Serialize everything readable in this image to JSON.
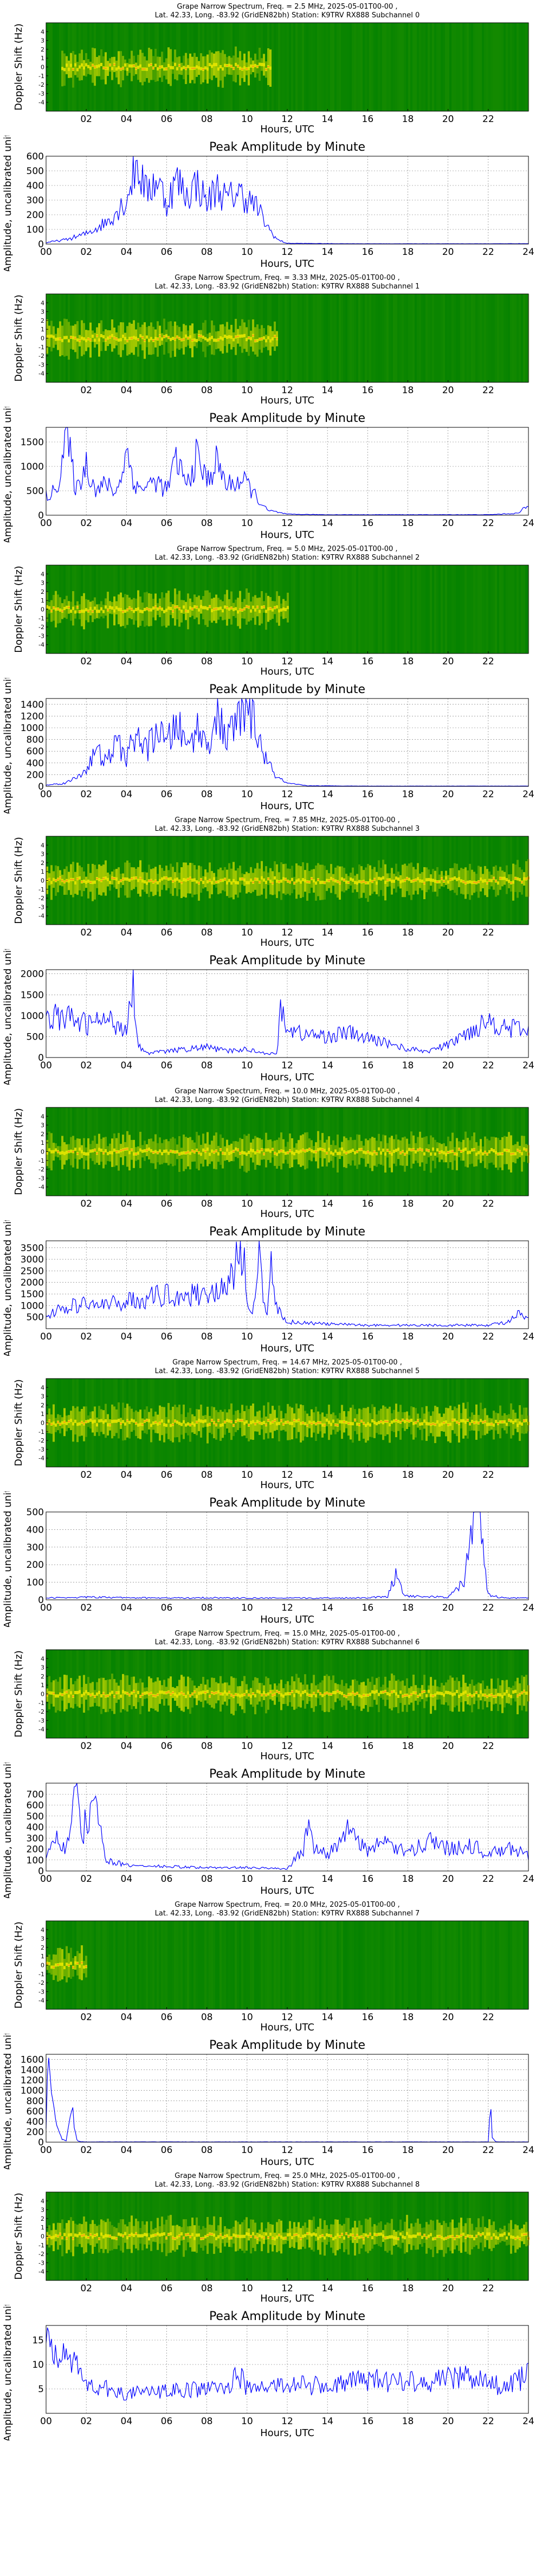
{
  "chart_data": [
    {
      "type": "heatmap",
      "title_line1": "Grape Narrow Spectrum, Freq. = 2.5 MHz, 2025-05-01T00-00 ,",
      "title_line2": "Lat.  42.33, Long. -83.92 (GridEN82bh) Station: K9TRV RX888 Subchannel 0",
      "xlabel": "Hours, UTC",
      "ylabel": "Doppler Shift (Hz)",
      "xticks": [
        "02",
        "04",
        "06",
        "08",
        "10",
        "12",
        "14",
        "16",
        "18",
        "20",
        "22"
      ],
      "yticks": [
        "4",
        "3",
        "2",
        "1",
        "0",
        "-1",
        "-2",
        "-3",
        "-4"
      ],
      "ylim": [
        -5,
        5
      ],
      "signal_hours": [
        0.7,
        11.2
      ],
      "colors": {
        "background": "#008000",
        "signal": "#e6e600",
        "peak": "#ff8c1a"
      }
    },
    {
      "type": "line",
      "title": "Peak Amplitude by Minute",
      "xlabel": "Hours, UTC",
      "ylabel": "Amplitude, uncalibrated units",
      "xlim": [
        0,
        24
      ],
      "ylim": [
        0,
        600
      ],
      "yticks": [
        "0",
        "100",
        "200",
        "300",
        "400",
        "500",
        "600"
      ],
      "xticks": [
        "00",
        "02",
        "04",
        "06",
        "08",
        "10",
        "12",
        "14",
        "16",
        "18",
        "20",
        "22",
        "24"
      ],
      "x": [
        0,
        1,
        2,
        3,
        4,
        4.5,
        5,
        5.5,
        6,
        6.5,
        7,
        7.5,
        8,
        8.5,
        9,
        9.5,
        10,
        10.5,
        11,
        11.5,
        12,
        14,
        16,
        18,
        20,
        22,
        24
      ],
      "y": [
        10,
        30,
        70,
        150,
        300,
        560,
        350,
        450,
        280,
        440,
        330,
        420,
        280,
        390,
        300,
        360,
        310,
        250,
        120,
        30,
        5,
        3,
        2,
        2,
        2,
        2,
        3
      ],
      "color": "#0000ff"
    },
    {
      "type": "heatmap",
      "title_line1": "Grape Narrow Spectrum, Freq. = 3.33 MHz, 2025-05-01T00-00 ,",
      "title_line2": "Lat.  42.33, Long. -83.92 (GridEN82bh) Station: K9TRV RX888 Subchannel 1",
      "xlabel": "Hours, UTC",
      "ylabel": "Doppler Shift (Hz)",
      "xticks": [
        "02",
        "04",
        "06",
        "08",
        "10",
        "12",
        "14",
        "16",
        "18",
        "20",
        "22"
      ],
      "yticks": [
        "4",
        "3",
        "2",
        "1",
        "0",
        "-1",
        "-2",
        "-3",
        "-4"
      ],
      "ylim": [
        -5,
        5
      ],
      "signal_hours": [
        0,
        11.5
      ],
      "colors": {
        "background": "#008000",
        "signal": "#e6e600",
        "peak": "#ff8c1a"
      }
    },
    {
      "type": "line",
      "title": "Peak Amplitude by Minute",
      "xlabel": "Hours, UTC",
      "ylabel": "Amplitude, uncalibrated units",
      "xlim": [
        0,
        24
      ],
      "ylim": [
        0,
        1800
      ],
      "yticks": [
        "0",
        "500",
        "1000",
        "1500"
      ],
      "xticks": [
        "00",
        "02",
        "04",
        "06",
        "08",
        "10",
        "12",
        "14",
        "16",
        "18",
        "20",
        "22",
        "24"
      ],
      "x": [
        0,
        0.5,
        1,
        1.5,
        2,
        2.5,
        3,
        3.5,
        4,
        4.5,
        5,
        5.5,
        6,
        6.5,
        7,
        7.5,
        8,
        8.5,
        9,
        9.5,
        10,
        10.5,
        11,
        12,
        14,
        16,
        18,
        20,
        22,
        23.5,
        24
      ],
      "y": [
        400,
        500,
        1650,
        500,
        1050,
        500,
        650,
        450,
        1300,
        550,
        600,
        700,
        500,
        1150,
        600,
        1200,
        700,
        1100,
        600,
        700,
        650,
        350,
        100,
        20,
        10,
        10,
        10,
        10,
        10,
        40,
        200
      ],
      "color": "#0000ff"
    },
    {
      "type": "heatmap",
      "title_line1": "Grape Narrow Spectrum, Freq. = 5.0 MHz, 2025-05-01T00-00 ,",
      "title_line2": "Lat.  42.33, Long. -83.92 (GridEN82bh) Station: K9TRV RX888 Subchannel 2",
      "xlabel": "Hours, UTC",
      "ylabel": "Doppler Shift (Hz)",
      "xticks": [
        "02",
        "04",
        "06",
        "08",
        "10",
        "12",
        "14",
        "16",
        "18",
        "20",
        "22"
      ],
      "yticks": [
        "4",
        "3",
        "2",
        "1",
        "0",
        "-1",
        "-2",
        "-3",
        "-4"
      ],
      "ylim": [
        -5,
        5
      ],
      "signal_hours": [
        0,
        12
      ],
      "colors": {
        "background": "#008000",
        "signal": "#e6e600",
        "peak": "#ff8c1a"
      }
    },
    {
      "type": "line",
      "title": "Peak Amplitude by Minute",
      "xlabel": "Hours, UTC",
      "ylabel": "Amplitude, uncalibrated units",
      "xlim": [
        0,
        24
      ],
      "ylim": [
        0,
        1500
      ],
      "yticks": [
        "0",
        "200",
        "400",
        "600",
        "800",
        "1000",
        "1200",
        "1400"
      ],
      "xticks": [
        "00",
        "02",
        "04",
        "06",
        "08",
        "10",
        "12",
        "14",
        "16",
        "18",
        "20",
        "22",
        "24"
      ],
      "x": [
        0,
        1,
        1.5,
        2,
        2.5,
        3,
        3.5,
        4,
        4.5,
        5,
        5.5,
        6,
        6.5,
        7,
        7.5,
        8,
        8.5,
        9,
        9.5,
        10,
        10.5,
        11,
        11.5,
        12,
        13,
        16,
        20,
        24
      ],
      "y": [
        20,
        60,
        150,
        300,
        600,
        400,
        750,
        500,
        900,
        600,
        1000,
        700,
        1100,
        650,
        1000,
        700,
        1200,
        800,
        1100,
        1450,
        900,
        400,
        150,
        50,
        10,
        5,
        5,
        5
      ],
      "color": "#0000ff"
    },
    {
      "type": "heatmap",
      "title_line1": "Grape Narrow Spectrum, Freq. = 7.85 MHz, 2025-05-01T00-00 ,",
      "title_line2": "Lat.  42.33, Long. -83.92 (GridEN82bh) Station: K9TRV RX888 Subchannel 3",
      "xlabel": "Hours, UTC",
      "ylabel": "Doppler Shift (Hz)",
      "xticks": [
        "02",
        "04",
        "06",
        "08",
        "10",
        "12",
        "14",
        "16",
        "18",
        "20",
        "22"
      ],
      "yticks": [
        "4",
        "3",
        "2",
        "1",
        "0",
        "-1",
        "-2",
        "-3",
        "-4"
      ],
      "ylim": [
        -5,
        5
      ],
      "signal_hours": [
        0,
        24
      ],
      "colors": {
        "background": "#008000",
        "signal": "#e6e600",
        "peak": "#ff8c1a"
      }
    },
    {
      "type": "line",
      "title": "Peak Amplitude by Minute",
      "xlabel": "Hours, UTC",
      "ylabel": "Amplitude, uncalibrated units",
      "xlim": [
        0,
        24
      ],
      "ylim": [
        0,
        2100
      ],
      "yticks": [
        "0",
        "500",
        "1000",
        "1500",
        "2000"
      ],
      "xticks": [
        "00",
        "02",
        "04",
        "06",
        "08",
        "10",
        "12",
        "14",
        "16",
        "18",
        "20",
        "22",
        "24"
      ],
      "x": [
        0,
        1,
        2,
        3,
        4,
        4.3,
        4.6,
        5,
        6,
        7,
        8,
        9,
        10,
        11,
        11.5,
        11.7,
        12,
        13,
        14,
        15,
        16,
        17,
        18,
        19,
        20,
        21,
        22,
        23,
        24
      ],
      "y": [
        1000,
        950,
        800,
        900,
        700,
        2000,
        300,
        100,
        150,
        200,
        250,
        150,
        200,
        100,
        80,
        1400,
        650,
        550,
        500,
        600,
        450,
        350,
        200,
        150,
        300,
        600,
        900,
        700,
        650
      ],
      "color": "#0000ff"
    },
    {
      "type": "heatmap",
      "title_line1": "Grape Narrow Spectrum, Freq. = 10.0 MHz, 2025-05-01T00-00 ,",
      "title_line2": "Lat.  42.33, Long. -83.92 (GridEN82bh) Station: K9TRV RX888 Subchannel 4",
      "xlabel": "Hours, UTC",
      "ylabel": "Doppler Shift (Hz)",
      "xticks": [
        "02",
        "04",
        "06",
        "08",
        "10",
        "12",
        "14",
        "16",
        "18",
        "20",
        "22"
      ],
      "yticks": [
        "4",
        "3",
        "2",
        "1",
        "0",
        "-1",
        "-2",
        "-3",
        "-4"
      ],
      "ylim": [
        -5,
        5
      ],
      "signal_hours": [
        0,
        24
      ],
      "colors": {
        "background": "#008000",
        "signal": "#e6e600",
        "peak": "#ff8c1a"
      }
    },
    {
      "type": "line",
      "title": "Peak Amplitude by Minute",
      "xlabel": "Hours, UTC",
      "ylabel": "Amplitude, uncalibrated units",
      "xlim": [
        0,
        24
      ],
      "ylim": [
        0,
        3800
      ],
      "yticks": [
        "500",
        "1000",
        "1500",
        "2000",
        "2500",
        "3000",
        "3500"
      ],
      "xticks": [
        "00",
        "02",
        "04",
        "06",
        "08",
        "10",
        "12",
        "14",
        "16",
        "18",
        "20",
        "22",
        "24"
      ],
      "x": [
        0,
        1,
        2,
        3,
        4,
        5,
        6,
        7,
        8,
        9,
        9.8,
        10,
        10.3,
        10.6,
        11,
        11.2,
        11.5,
        12,
        14,
        16,
        18,
        20,
        22,
        23,
        23.5,
        24
      ],
      "y": [
        600,
        900,
        1100,
        1000,
        1200,
        1300,
        1500,
        1400,
        1600,
        1700,
        3600,
        900,
        600,
        2900,
        500,
        3100,
        800,
        300,
        200,
        150,
        150,
        150,
        150,
        300,
        600,
        400
      ],
      "color": "#0000ff"
    },
    {
      "type": "heatmap",
      "title_line1": "Grape Narrow Spectrum, Freq. = 14.67 MHz, 2025-05-01T00-00 ,",
      "title_line2": "Lat.  42.33, Long. -83.92 (GridEN82bh) Station: K9TRV RX888 Subchannel 5",
      "xlabel": "Hours, UTC",
      "ylabel": "Doppler Shift (Hz)",
      "xticks": [
        "02",
        "04",
        "06",
        "08",
        "10",
        "12",
        "14",
        "16",
        "18",
        "20",
        "22"
      ],
      "yticks": [
        "4",
        "3",
        "2",
        "1",
        "0",
        "-1",
        "-2",
        "-3",
        "-4"
      ],
      "ylim": [
        -5,
        5
      ],
      "signal_hours": [
        0,
        24
      ],
      "colors": {
        "background": "#008000",
        "signal": "#e6e600",
        "peak": "#ff8c1a"
      }
    },
    {
      "type": "line",
      "title": "Peak Amplitude by Minute",
      "xlabel": "Hours, UTC",
      "ylabel": "Amplitude, uncalibrated units",
      "xlim": [
        0,
        24
      ],
      "ylim": [
        0,
        500
      ],
      "yticks": [
        "0",
        "100",
        "200",
        "300",
        "400",
        "500"
      ],
      "xticks": [
        "00",
        "02",
        "04",
        "06",
        "08",
        "10",
        "12",
        "14",
        "16",
        "18",
        "20",
        "22",
        "24"
      ],
      "x": [
        0,
        2,
        4,
        6,
        8,
        10,
        12,
        14,
        16,
        17,
        17.4,
        17.8,
        18,
        20,
        20.8,
        21,
        21.3,
        21.6,
        21.8,
        22,
        22.5,
        23,
        24
      ],
      "y": [
        10,
        15,
        12,
        10,
        12,
        10,
        10,
        10,
        12,
        20,
        150,
        40,
        20,
        15,
        100,
        300,
        400,
        470,
        200,
        30,
        15,
        10,
        10
      ],
      "color": "#0000ff"
    },
    {
      "type": "heatmap",
      "title_line1": "Grape Narrow Spectrum, Freq. = 15.0 MHz, 2025-05-01T00-00 ,",
      "title_line2": "Lat.  42.33, Long. -83.92 (GridEN82bh) Station: K9TRV RX888 Subchannel 6",
      "xlabel": "Hours, UTC",
      "ylabel": "Doppler Shift (Hz)",
      "xticks": [
        "02",
        "04",
        "06",
        "08",
        "10",
        "12",
        "14",
        "16",
        "18",
        "20",
        "22"
      ],
      "yticks": [
        "4",
        "3",
        "2",
        "1",
        "0",
        "-1",
        "-2",
        "-3",
        "-4"
      ],
      "ylim": [
        -5,
        5
      ],
      "signal_hours": [
        0,
        24
      ],
      "colors": {
        "background": "#008000",
        "signal": "#e6e600",
        "peak": "#ff8c1a"
      }
    },
    {
      "type": "line",
      "title": "Peak Amplitude by Minute",
      "xlabel": "Hours, UTC",
      "ylabel": "Amplitude, uncalibrated units",
      "xlim": [
        0,
        24
      ],
      "ylim": [
        0,
        800
      ],
      "yticks": [
        "0",
        "100",
        "200",
        "300",
        "400",
        "500",
        "600",
        "700"
      ],
      "xticks": [
        "00",
        "02",
        "04",
        "06",
        "08",
        "10",
        "12",
        "14",
        "16",
        "18",
        "20",
        "22",
        "24"
      ],
      "x": [
        0,
        0.5,
        1,
        1.5,
        1.8,
        2,
        2.5,
        3,
        4,
        6,
        8,
        10,
        12,
        12.8,
        13,
        13.3,
        14,
        15,
        16,
        17,
        18,
        19,
        20,
        21,
        22,
        23,
        24
      ],
      "y": [
        100,
        300,
        200,
        700,
        250,
        500,
        550,
        100,
        50,
        40,
        30,
        30,
        20,
        200,
        400,
        250,
        150,
        350,
        200,
        250,
        150,
        300,
        200,
        250,
        150,
        200,
        150
      ],
      "color": "#0000ff"
    },
    {
      "type": "heatmap",
      "title_line1": "Grape Narrow Spectrum, Freq. = 20.0 MHz, 2025-05-01T00-00 ,",
      "title_line2": "Lat.  42.33, Long. -83.92 (GridEN82bh) Station: K9TRV RX888 Subchannel 7",
      "xlabel": "Hours, UTC",
      "ylabel": "Doppler Shift (Hz)",
      "xticks": [
        "02",
        "04",
        "06",
        "08",
        "10",
        "12",
        "14",
        "16",
        "18",
        "20",
        "22"
      ],
      "yticks": [
        "4",
        "3",
        "2",
        "1",
        "0",
        "-1",
        "-2",
        "-3",
        "-4"
      ],
      "ylim": [
        -5,
        5
      ],
      "signal_hours": [
        0,
        2
      ],
      "colors": {
        "background": "#008000",
        "signal": "#e6e600",
        "peak": "#ff8c1a"
      }
    },
    {
      "type": "line",
      "title": "Peak Amplitude by Minute",
      "xlabel": "Hours, UTC",
      "ylabel": "Amplitude, uncalibrated units",
      "xlim": [
        0,
        24
      ],
      "ylim": [
        0,
        1700
      ],
      "yticks": [
        "0",
        "200",
        "400",
        "600",
        "800",
        "1000",
        "1200",
        "1400",
        "1600"
      ],
      "xticks": [
        "00",
        "02",
        "04",
        "06",
        "08",
        "10",
        "12",
        "14",
        "16",
        "18",
        "20",
        "22",
        "24"
      ],
      "x": [
        0,
        0.1,
        0.3,
        0.5,
        0.8,
        1,
        1.3,
        1.5,
        1.7,
        2,
        4,
        8,
        12,
        16,
        20,
        22,
        22.1,
        22.2,
        22.4,
        24
      ],
      "y": [
        200,
        1650,
        800,
        300,
        50,
        20,
        600,
        50,
        10,
        5,
        5,
        5,
        5,
        5,
        5,
        5,
        700,
        100,
        5,
        5
      ],
      "color": "#0000ff"
    },
    {
      "type": "heatmap",
      "title_line1": "Grape Narrow Spectrum, Freq. = 25.0 MHz, 2025-05-01T00-00 ,",
      "title_line2": "Lat.  42.33, Long. -83.92 (GridEN82bh) Station: K9TRV RX888 Subchannel 8",
      "xlabel": "Hours, UTC",
      "ylabel": "Doppler Shift (Hz)",
      "xticks": [
        "02",
        "04",
        "06",
        "08",
        "10",
        "12",
        "14",
        "16",
        "18",
        "20",
        "22"
      ],
      "yticks": [
        "4",
        "3",
        "2",
        "1",
        "0",
        "-1",
        "-2",
        "-3",
        "-4"
      ],
      "ylim": [
        -5,
        5
      ],
      "signal_hours": [
        0,
        24
      ],
      "colors": {
        "background": "#008000",
        "signal": "#e6e600",
        "peak": "#ff8c1a"
      }
    },
    {
      "type": "line",
      "title": "Peak Amplitude by Minute",
      "xlabel": "Hours, UTC",
      "ylabel": "Amplitude, uncalibrated units",
      "xlim": [
        0,
        24
      ],
      "ylim": [
        0,
        18
      ],
      "yticks": [
        "5",
        "10",
        "15"
      ],
      "xticks": [
        "00",
        "02",
        "04",
        "06",
        "08",
        "10",
        "12",
        "14",
        "16",
        "18",
        "20",
        "22",
        "24"
      ],
      "x": [
        0,
        0.5,
        1,
        1.5,
        2,
        3,
        4,
        6,
        8,
        9,
        9.5,
        10,
        12,
        14,
        16,
        17,
        18,
        19,
        20,
        21,
        22,
        23,
        24
      ],
      "y": [
        14,
        12,
        16,
        9,
        6,
        5,
        4,
        4.5,
        5,
        5,
        9,
        5,
        6,
        5.5,
        7,
        6.5,
        7,
        6.5,
        7,
        8,
        6,
        5.5,
        8
      ],
      "color": "#0000ff"
    }
  ]
}
